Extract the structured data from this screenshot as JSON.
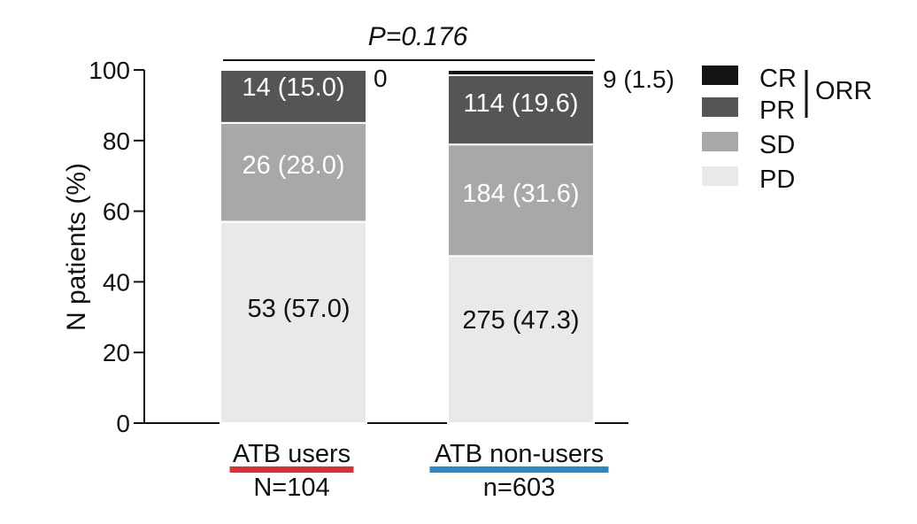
{
  "chart_data": {
    "type": "bar",
    "stacked": true,
    "ylabel": "N patients (%)",
    "ylim": [
      0,
      100
    ],
    "yticks": [
      0,
      20,
      40,
      60,
      80,
      100
    ],
    "grid": false,
    "legend_position": "right",
    "pvalue": "P=0.176",
    "categories": [
      {
        "label": "ATB users",
        "n_label": "N=104",
        "underline_color": "#d9303a"
      },
      {
        "label": "ATB non-users",
        "n_label": "n=603",
        "underline_color": "#2f86c6"
      }
    ],
    "series": [
      {
        "name": "PD",
        "color": "#e9e9e9",
        "label_color": "#111111",
        "values": [
          57.0,
          47.3
        ],
        "labels": [
          "53 (57.0)",
          "275 (47.3)"
        ]
      },
      {
        "name": "SD",
        "color": "#a8a8a8",
        "label_color": "#ffffff",
        "values": [
          28.0,
          31.6
        ],
        "labels": [
          "26 (28.0)",
          "184 (31.6)"
        ]
      },
      {
        "name": "PR",
        "color": "#555555",
        "label_color": "#ffffff",
        "values": [
          15.0,
          19.6
        ],
        "labels": [
          "14 (15.0)",
          "114 (19.6)"
        ]
      },
      {
        "name": "CR",
        "color": "#141414",
        "label_color": "#111111",
        "values": [
          0,
          1.5
        ],
        "labels": [
          "0",
          "9 (1.5)"
        ]
      }
    ],
    "legend_order": [
      "CR",
      "PR",
      "SD",
      "PD"
    ],
    "legend_group": {
      "label": "ORR",
      "members": [
        "CR",
        "PR"
      ]
    }
  }
}
